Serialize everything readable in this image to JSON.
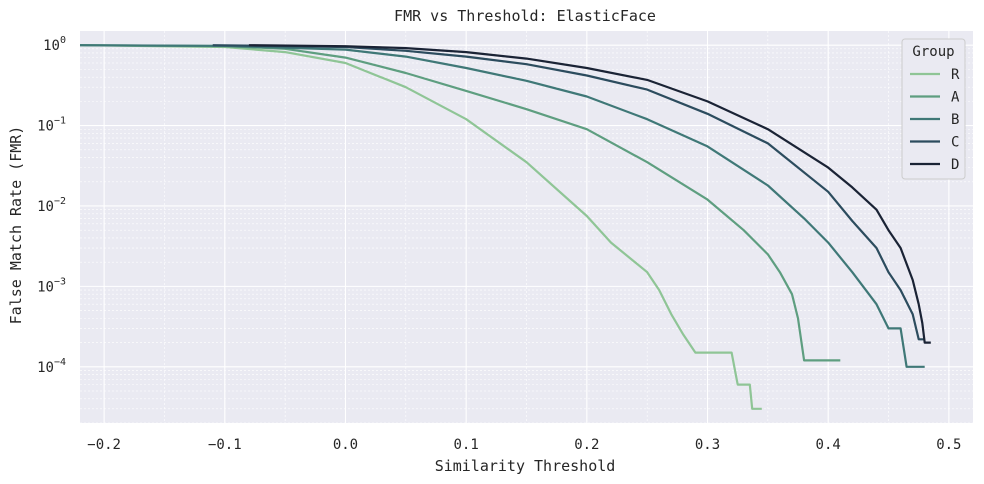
{
  "chart_data": {
    "type": "line",
    "title": "FMR vs Threshold: ElasticFace",
    "xlabel": "Similarity Threshold",
    "ylabel": "False Match Rate (FMR)",
    "xscale": "linear",
    "yscale": "log",
    "xlim": [
      -0.22,
      0.52
    ],
    "ylim": [
      2e-05,
      1.5
    ],
    "xticks": [
      -0.2,
      -0.1,
      0.0,
      0.1,
      0.2,
      0.3,
      0.4,
      0.5
    ],
    "xtick_labels": [
      "−0.2",
      "−0.1",
      "0.0",
      "0.1",
      "0.2",
      "0.3",
      "0.4",
      "0.5"
    ],
    "yticks": [
      1,
      0.1,
      0.01,
      0.001,
      0.0001
    ],
    "ytick_labels": [
      {
        "base": "10",
        "exp": "0"
      },
      {
        "base": "10",
        "exp": "−1"
      },
      {
        "base": "10",
        "exp": "−2"
      },
      {
        "base": "10",
        "exp": "−3"
      },
      {
        "base": "10",
        "exp": "−4"
      }
    ],
    "grid": true,
    "legend": {
      "title": "Group",
      "position": "top-right"
    },
    "series": [
      {
        "name": "R",
        "color": "#8fc596",
        "points": [
          [
            -0.22,
            1.0
          ],
          [
            -0.1,
            0.95
          ],
          [
            -0.05,
            0.82
          ],
          [
            0.0,
            0.6
          ],
          [
            0.05,
            0.3
          ],
          [
            0.1,
            0.12
          ],
          [
            0.15,
            0.035
          ],
          [
            0.2,
            0.0075
          ],
          [
            0.22,
            0.0035
          ],
          [
            0.25,
            0.0015
          ],
          [
            0.26,
            0.0009
          ],
          [
            0.27,
            0.00045
          ],
          [
            0.28,
            0.00025
          ],
          [
            0.29,
            0.00015
          ],
          [
            0.32,
            0.00015
          ],
          [
            0.325,
            6e-05
          ],
          [
            0.335,
            6e-05
          ],
          [
            0.337,
            3e-05
          ],
          [
            0.345,
            3e-05
          ]
        ]
      },
      {
        "name": "A",
        "color": "#5e9e80",
        "points": [
          [
            -0.22,
            1.0
          ],
          [
            -0.1,
            0.97
          ],
          [
            -0.05,
            0.9
          ],
          [
            0.0,
            0.7
          ],
          [
            0.05,
            0.45
          ],
          [
            0.1,
            0.27
          ],
          [
            0.15,
            0.16
          ],
          [
            0.2,
            0.09
          ],
          [
            0.25,
            0.035
          ],
          [
            0.3,
            0.012
          ],
          [
            0.33,
            0.005
          ],
          [
            0.35,
            0.0025
          ],
          [
            0.36,
            0.0015
          ],
          [
            0.37,
            0.0008
          ],
          [
            0.375,
            0.0004
          ],
          [
            0.38,
            0.00012
          ],
          [
            0.41,
            0.00012
          ]
        ]
      },
      {
        "name": "B",
        "color": "#3f7877",
        "points": [
          [
            -0.22,
            1.0
          ],
          [
            -0.1,
            0.98
          ],
          [
            0.0,
            0.88
          ],
          [
            0.05,
            0.72
          ],
          [
            0.1,
            0.52
          ],
          [
            0.15,
            0.36
          ],
          [
            0.2,
            0.23
          ],
          [
            0.25,
            0.12
          ],
          [
            0.3,
            0.055
          ],
          [
            0.35,
            0.018
          ],
          [
            0.38,
            0.007
          ],
          [
            0.4,
            0.0035
          ],
          [
            0.42,
            0.0015
          ],
          [
            0.43,
            0.00095
          ],
          [
            0.44,
            0.0006
          ],
          [
            0.45,
            0.0003
          ],
          [
            0.46,
            0.0003
          ],
          [
            0.465,
            0.0001
          ],
          [
            0.48,
            0.0001
          ]
        ]
      },
      {
        "name": "C",
        "color": "#2c4c5e",
        "points": [
          [
            -0.11,
            1.0
          ],
          [
            0.0,
            0.95
          ],
          [
            0.05,
            0.85
          ],
          [
            0.1,
            0.72
          ],
          [
            0.15,
            0.58
          ],
          [
            0.2,
            0.42
          ],
          [
            0.25,
            0.28
          ],
          [
            0.3,
            0.14
          ],
          [
            0.35,
            0.06
          ],
          [
            0.4,
            0.015
          ],
          [
            0.42,
            0.0065
          ],
          [
            0.44,
            0.003
          ],
          [
            0.45,
            0.0015
          ],
          [
            0.46,
            0.0009
          ],
          [
            0.47,
            0.00045
          ],
          [
            0.475,
            0.00022
          ],
          [
            0.48,
            0.00022
          ]
        ]
      },
      {
        "name": "D",
        "color": "#1a2335",
        "points": [
          [
            -0.08,
            1.0
          ],
          [
            0.0,
            0.97
          ],
          [
            0.05,
            0.92
          ],
          [
            0.1,
            0.82
          ],
          [
            0.15,
            0.68
          ],
          [
            0.2,
            0.52
          ],
          [
            0.25,
            0.37
          ],
          [
            0.3,
            0.2
          ],
          [
            0.35,
            0.09
          ],
          [
            0.4,
            0.03
          ],
          [
            0.42,
            0.017
          ],
          [
            0.44,
            0.009
          ],
          [
            0.45,
            0.005
          ],
          [
            0.46,
            0.003
          ],
          [
            0.47,
            0.0012
          ],
          [
            0.475,
            0.0006
          ],
          [
            0.478,
            0.00035
          ],
          [
            0.48,
            0.0002
          ],
          [
            0.485,
            0.0002
          ]
        ]
      }
    ]
  }
}
